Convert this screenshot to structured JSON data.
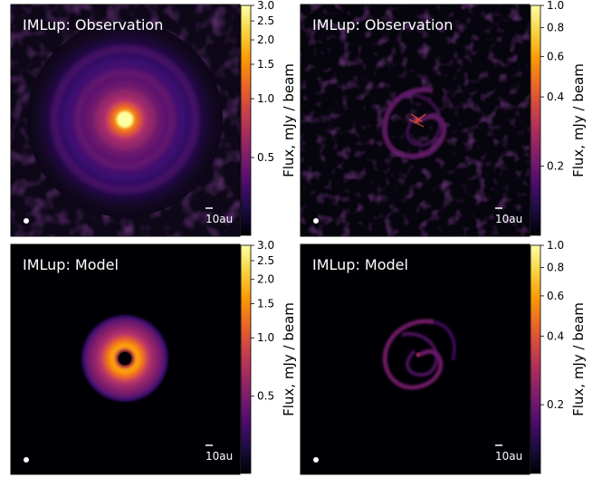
{
  "colors": {
    "background": "#000004",
    "label_text": "#ffffff",
    "colormap": [
      "#000004",
      "#1b0c41",
      "#4a0c6b",
      "#781c6d",
      "#a52c60",
      "#cf4446",
      "#ed6925",
      "#fb9b06",
      "#f7d13d",
      "#fcffa4"
    ]
  },
  "chart_data": [
    {
      "type": "heatmap",
      "title": "IMLup: Observation",
      "image_kind": "continuum-disk-with-rings",
      "colorbar": {
        "label": "Flux, mJy / beam",
        "scale": "log",
        "range": [
          0.2,
          3.0
        ],
        "ticks": [
          3.0,
          2.5,
          2.0,
          1.5,
          1.0,
          0.5
        ],
        "tick_labels": [
          "3.0",
          "2.5",
          "2.0",
          "1.5",
          "1.0",
          "0.5"
        ]
      },
      "scale_bar": "10au",
      "beam": true
    },
    {
      "type": "heatmap",
      "title": "IMLup: Observation",
      "image_kind": "spiral-residual",
      "colorbar": {
        "label": "Flux, mJy / beam",
        "scale": "log",
        "range": [
          0.1,
          1.0
        ],
        "ticks": [
          1.0,
          0.8,
          0.6,
          0.4,
          0.2
        ],
        "tick_labels": [
          "1.0",
          "0.8",
          "0.6",
          "0.4",
          "0.2"
        ]
      },
      "scale_bar": "10au",
      "beam": true
    },
    {
      "type": "heatmap",
      "title": "IMLup: Model",
      "image_kind": "model-ring",
      "colorbar": {
        "label": "Flux, mJy / beam",
        "scale": "log",
        "range": [
          0.2,
          3.0
        ],
        "ticks": [
          3.0,
          2.5,
          2.0,
          1.5,
          1.0,
          0.5
        ],
        "tick_labels": [
          "3.0",
          "2.5",
          "2.0",
          "1.5",
          "1.0",
          "0.5"
        ]
      },
      "scale_bar": "10au",
      "beam": true
    },
    {
      "type": "heatmap",
      "title": "IMLup: Model",
      "image_kind": "model-spiral",
      "colorbar": {
        "label": "Flux, mJy / beam",
        "scale": "log",
        "range": [
          0.1,
          1.0
        ],
        "ticks": [
          1.0,
          0.8,
          0.6,
          0.4,
          0.2
        ],
        "tick_labels": [
          "1.0",
          "0.8",
          "0.6",
          "0.4",
          "0.2"
        ]
      },
      "scale_bar": "10au",
      "beam": true
    }
  ]
}
